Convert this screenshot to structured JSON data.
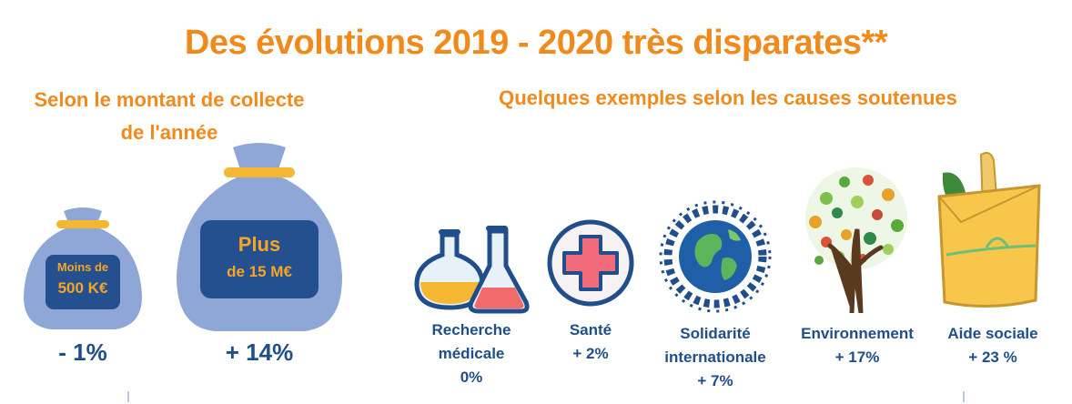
{
  "title": "Des évolutions 2019 - 2020 très disparates**",
  "left_section": {
    "heading_line1": "Selon le montant de collecte",
    "heading_line2": "de l'année",
    "bags": [
      {
        "label_line1": "Moins de",
        "label_line2": "500 K€",
        "change": "- 1%"
      },
      {
        "label_line1": "Plus",
        "label_line2": "de 15 M€",
        "change": "+ 14%"
      }
    ]
  },
  "right_section": {
    "heading": "Quelques exemples selon les causes soutenues",
    "causes": [
      {
        "icon": "flasks-icon",
        "line1": "Recherche",
        "line2": "médicale",
        "line3": "0%"
      },
      {
        "icon": "health-cross-icon",
        "line1": "Santé",
        "line2": "+ 2%"
      },
      {
        "icon": "globe-people-icon",
        "line1": "Solidarité",
        "line2": "internationale",
        "line3": "+ 7%"
      },
      {
        "icon": "tree-icon",
        "line1": "Environnement",
        "line2": "+  17%"
      },
      {
        "icon": "grocery-bag-icon",
        "line1": "Aide sociale",
        "line2": "+  23 %"
      }
    ]
  },
  "colors": {
    "accent": "#f08a1c",
    "navy": "#1f4e8a",
    "bag": "#8ea7d6",
    "bag_label_box": "#24508f",
    "tie": "#f5b731"
  }
}
